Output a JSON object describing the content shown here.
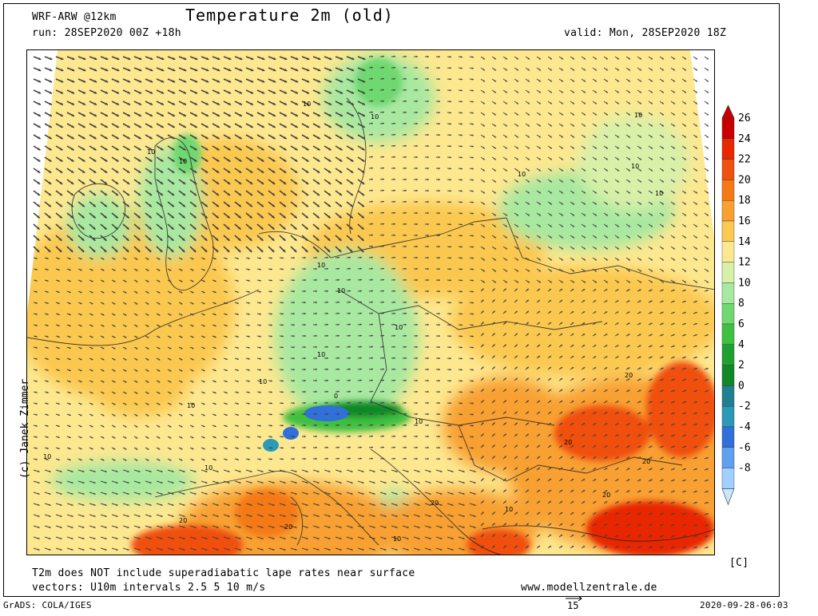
{
  "header": {
    "model": "WRF-ARW @12km",
    "run": "run: 28SEP2020 00Z +18h",
    "title": "Temperature 2m (old)",
    "valid": "valid: Mon, 28SEP2020 18Z"
  },
  "map": {
    "region": "Central Europe",
    "contour_label": "10",
    "contour_label_20": "20",
    "contour_label_0": "0",
    "field": "Temperature 2m"
  },
  "legend": {
    "unit": "[C]",
    "levels": [
      {
        "value": "26",
        "color": "#c80000"
      },
      {
        "value": "24",
        "color": "#e82800"
      },
      {
        "value": "22",
        "color": "#f05010"
      },
      {
        "value": "20",
        "color": "#f57a14"
      },
      {
        "value": "18",
        "color": "#f8a030"
      },
      {
        "value": "16",
        "color": "#fbc850"
      },
      {
        "value": "14",
        "color": "#fde890"
      },
      {
        "value": "12",
        "color": "#d8f0a8"
      },
      {
        "value": "10",
        "color": "#a8e8a0"
      },
      {
        "value": "8",
        "color": "#70d870"
      },
      {
        "value": "6",
        "color": "#40c040"
      },
      {
        "value": "4",
        "color": "#20a030"
      },
      {
        "value": "2",
        "color": "#108828"
      },
      {
        "value": "0",
        "color": "#208090"
      },
      {
        "value": "-2",
        "color": "#2a9ab8"
      },
      {
        "value": "-4",
        "color": "#3070d8"
      },
      {
        "value": "-6",
        "color": "#60a0f0"
      },
      {
        "value": "-8",
        "color": "#a0d0ff"
      }
    ]
  },
  "footer": {
    "note1": "T2m does NOT include superadiabatic lape rates near surface",
    "note2": "vectors: U10m intervals 2.5 5 10 m/s",
    "website": "www.modellzentrale.de",
    "grads": "GrADS: COLA/IGES",
    "vector_ref": "15",
    "timestamp": "2020-09-28-06:03",
    "copyright": "(c) Janek Zimmer"
  }
}
